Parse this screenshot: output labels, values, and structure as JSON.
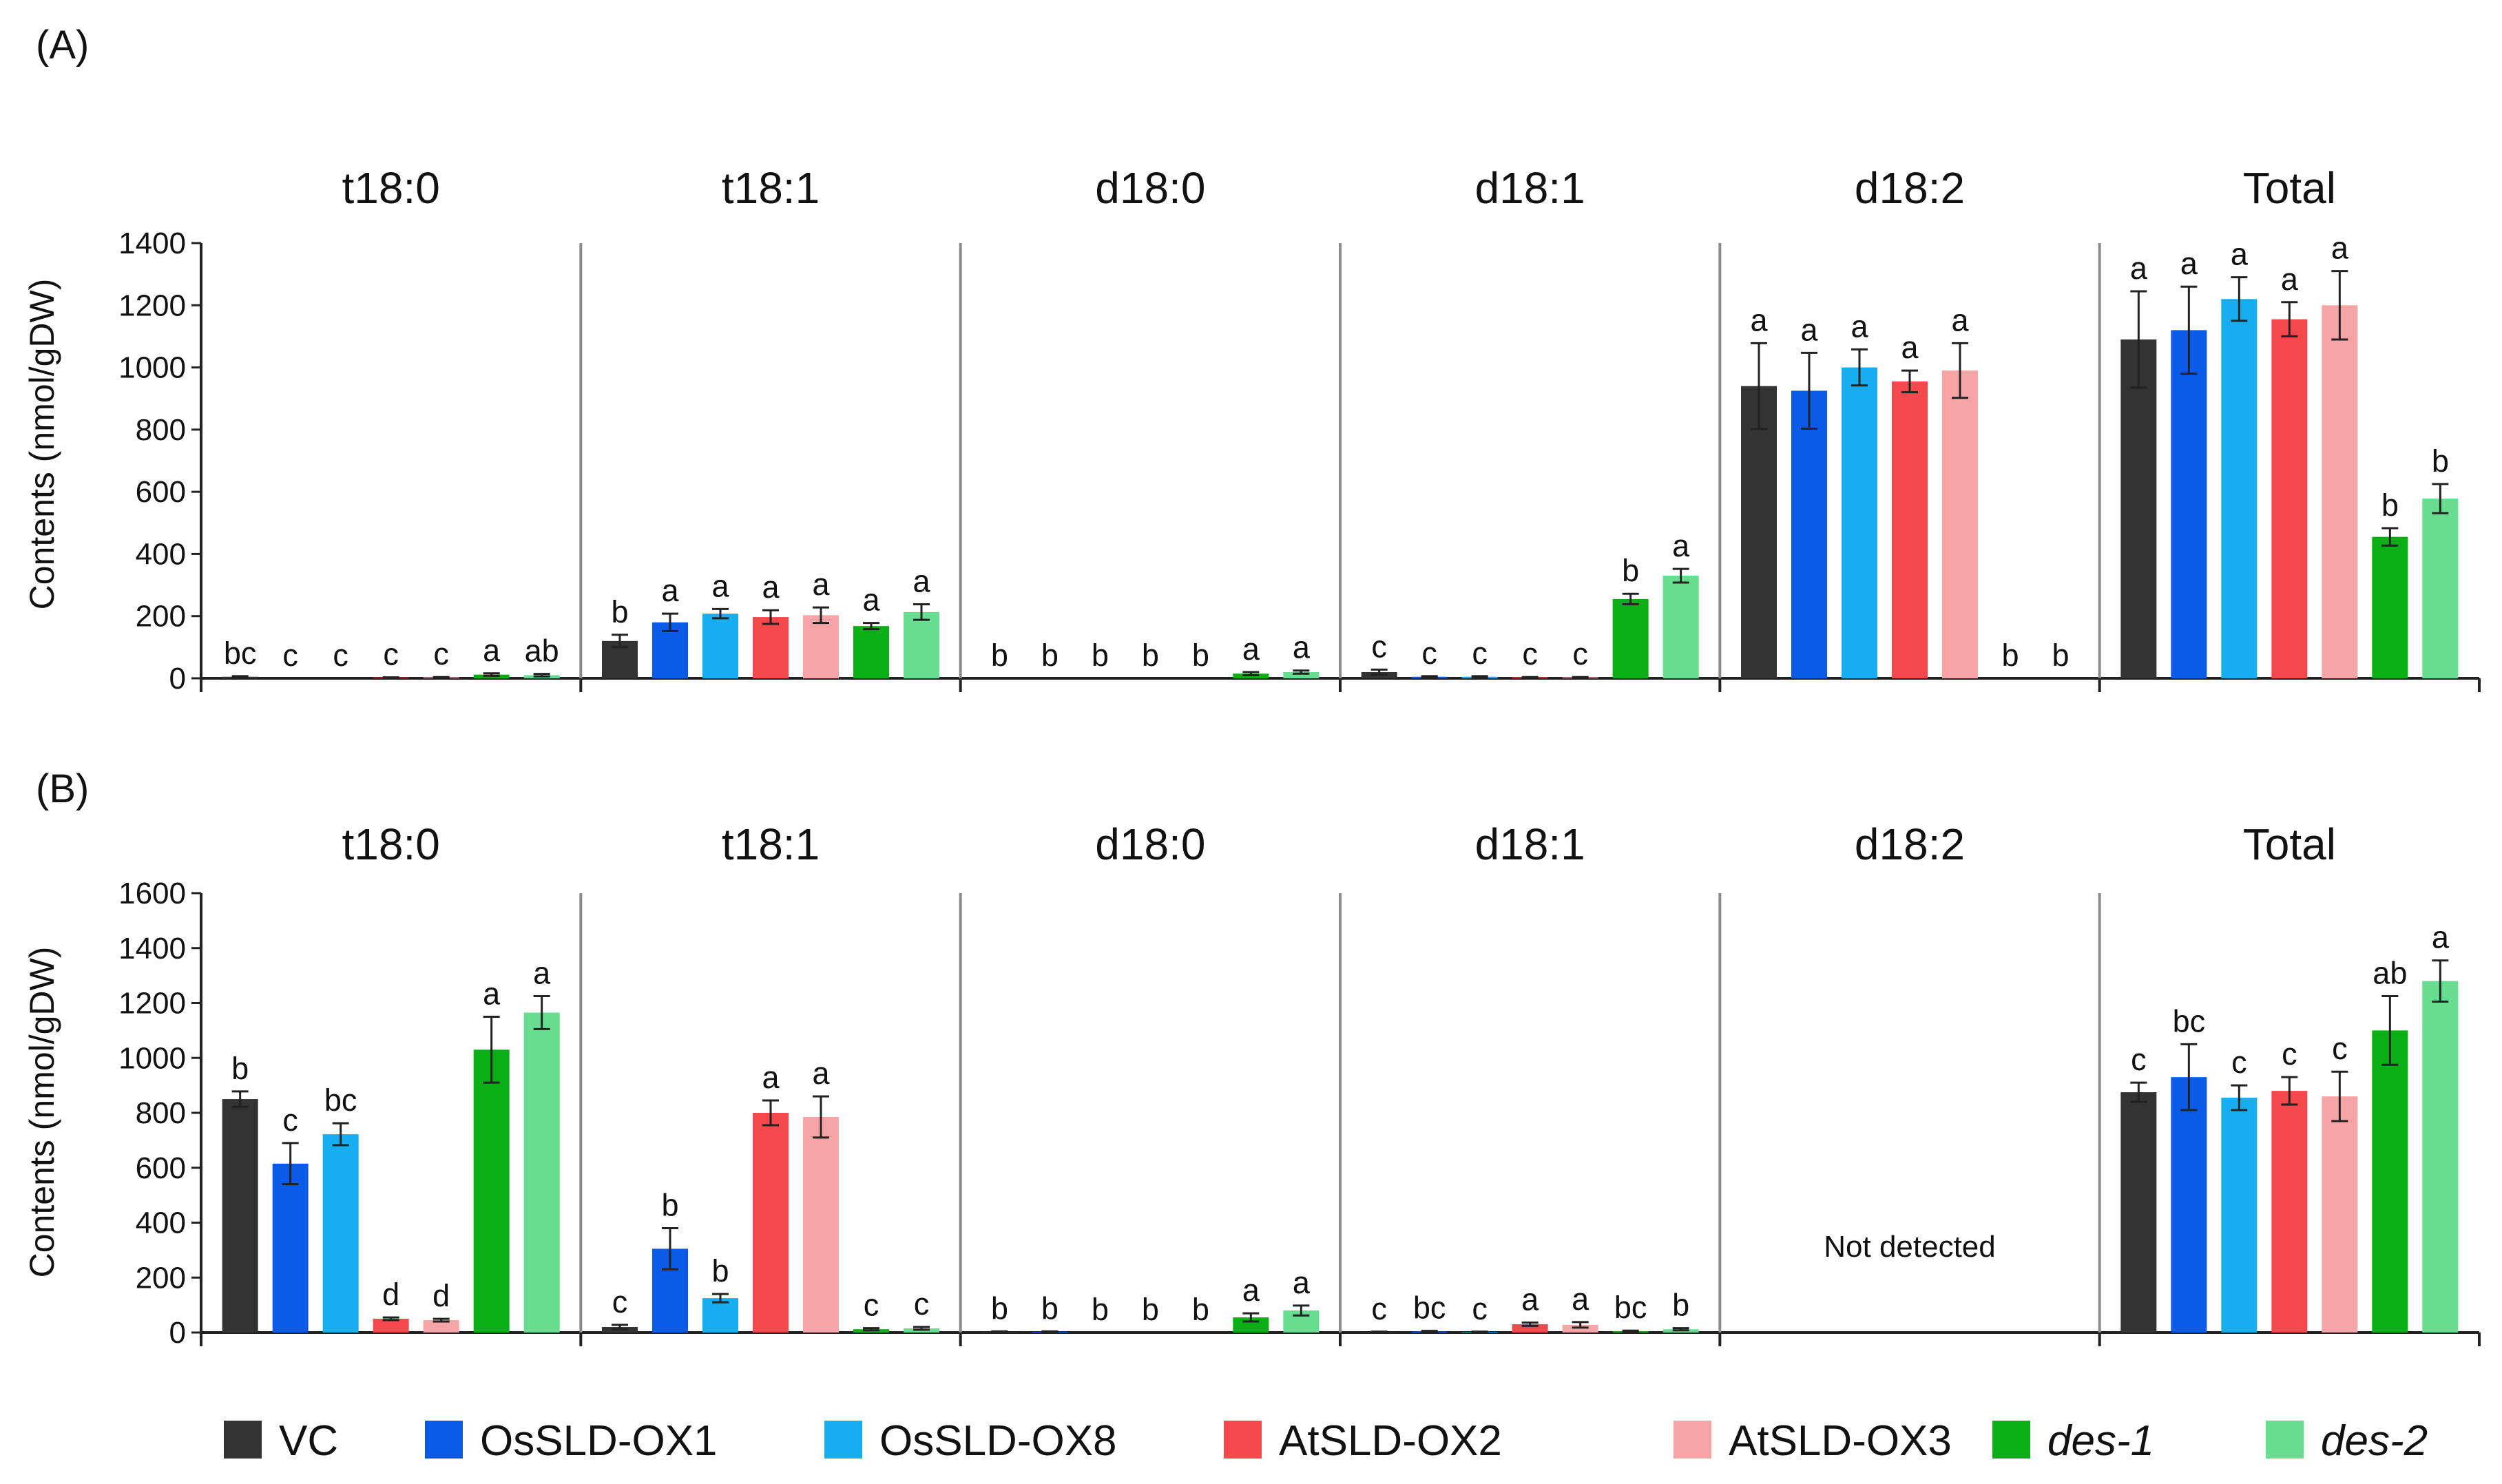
{
  "chart_data": [
    {
      "type": "bar",
      "panel_label": "(A)",
      "ylabel": "Contents (nmol/gDW)",
      "ylim": [
        0,
        1400
      ],
      "yticks": [
        0,
        200,
        400,
        600,
        800,
        1000,
        1200,
        1400
      ],
      "series": [
        "VC",
        "OsSLD-OX1",
        "OsSLD-OX8",
        "AtSLD-OX2",
        "AtSLD-OX3",
        "des-1",
        "des-2"
      ],
      "groups": [
        {
          "title": "t18:0",
          "values": [
            5,
            0,
            0,
            2,
            3,
            12,
            10
          ],
          "errors": [
            2,
            0,
            0,
            1,
            1,
            4,
            4
          ],
          "letters": [
            "bc",
            "c",
            "c",
            "c",
            "c",
            "a",
            "ab"
          ],
          "note": ""
        },
        {
          "title": "t18:1",
          "values": [
            120,
            180,
            208,
            197,
            203,
            168,
            213
          ],
          "errors": [
            20,
            28,
            15,
            22,
            25,
            10,
            25
          ],
          "letters": [
            "b",
            "a",
            "a",
            "a",
            "a",
            "a",
            "a"
          ],
          "note": ""
        },
        {
          "title": "d18:0",
          "values": [
            0,
            0,
            0,
            0,
            0,
            15,
            20
          ],
          "errors": [
            0,
            0,
            0,
            0,
            0,
            5,
            5
          ],
          "letters": [
            "b",
            "b",
            "b",
            "b",
            "b",
            "a",
            "a"
          ],
          "note": ""
        },
        {
          "title": "d18:1",
          "values": [
            20,
            5,
            5,
            3,
            3,
            255,
            330
          ],
          "errors": [
            8,
            2,
            2,
            1,
            1,
            17,
            22
          ],
          "letters": [
            "c",
            "c",
            "c",
            "c",
            "c",
            "b",
            "a"
          ],
          "note": ""
        },
        {
          "title": "d18:2",
          "values": [
            940,
            925,
            1000,
            955,
            990,
            0,
            0
          ],
          "errors": [
            138,
            122,
            58,
            35,
            88,
            0,
            0
          ],
          "letters": [
            "a",
            "a",
            "a",
            "a",
            "a",
            "b",
            "b"
          ],
          "note": ""
        },
        {
          "title": "Total",
          "values": [
            1090,
            1120,
            1220,
            1155,
            1200,
            455,
            578
          ],
          "errors": [
            155,
            140,
            70,
            55,
            110,
            28,
            47
          ],
          "letters": [
            "a",
            "a",
            "a",
            "a",
            "a",
            "b",
            "b"
          ],
          "note": ""
        }
      ]
    },
    {
      "type": "bar",
      "panel_label": "(B)",
      "ylabel": "Contents (nmol/gDW)",
      "ylim": [
        0,
        1600
      ],
      "yticks": [
        0,
        200,
        400,
        600,
        800,
        1000,
        1200,
        1400,
        1600
      ],
      "series": [
        "VC",
        "OsSLD-OX1",
        "OsSLD-OX8",
        "AtSLD-OX2",
        "AtSLD-OX3",
        "des-1",
        "des-2"
      ],
      "groups": [
        {
          "title": "t18:0",
          "values": [
            850,
            615,
            722,
            50,
            45,
            1030,
            1165
          ],
          "errors": [
            28,
            75,
            40,
            5,
            5,
            120,
            60
          ],
          "letters": [
            "b",
            "c",
            "bc",
            "d",
            "d",
            "a",
            "a"
          ],
          "note": ""
        },
        {
          "title": "t18:1",
          "values": [
            20,
            305,
            125,
            800,
            785,
            12,
            15
          ],
          "errors": [
            8,
            75,
            15,
            45,
            75,
            4,
            5
          ],
          "letters": [
            "c",
            "b",
            "b",
            "a",
            "a",
            "c",
            "c"
          ],
          "note": ""
        },
        {
          "title": "d18:0",
          "values": [
            3,
            3,
            0,
            0,
            0,
            55,
            80
          ],
          "errors": [
            1,
            1,
            0,
            0,
            0,
            15,
            18
          ],
          "letters": [
            "b",
            "b",
            "b",
            "b",
            "b",
            "a",
            "a"
          ],
          "note": ""
        },
        {
          "title": "d18:1",
          "values": [
            2,
            4,
            2,
            30,
            28,
            5,
            12
          ],
          "errors": [
            1,
            2,
            1,
            6,
            10,
            2,
            4
          ],
          "letters": [
            "c",
            "bc",
            "c",
            "a",
            "a",
            "bc",
            "b"
          ],
          "note": ""
        },
        {
          "title": "d18:2",
          "values": [],
          "errors": [],
          "letters": [],
          "note": "Not detected"
        },
        {
          "title": "Total",
          "values": [
            875,
            930,
            855,
            880,
            860,
            1100,
            1280
          ],
          "errors": [
            35,
            120,
            45,
            50,
            90,
            125,
            75
          ],
          "letters": [
            "c",
            "bc",
            "c",
            "c",
            "c",
            "ab",
            "a"
          ],
          "note": ""
        }
      ]
    }
  ],
  "legend": [
    {
      "label": "VC",
      "color": "#333333",
      "italic": false
    },
    {
      "label": "OsSLD-OX1",
      "color": "#0a5ce8",
      "italic": false
    },
    {
      "label": "OsSLD-OX8",
      "color": "#17aef0",
      "italic": false
    },
    {
      "label": "AtSLD-OX2",
      "color": "#f5484c",
      "italic": false
    },
    {
      "label": "AtSLD-OX3",
      "color": "#f7a4a6",
      "italic": false
    },
    {
      "label": "des-1",
      "color": "#0aaf15",
      "italic": true
    },
    {
      "label": "des-2",
      "color": "#66dd8f",
      "italic": true
    }
  ]
}
